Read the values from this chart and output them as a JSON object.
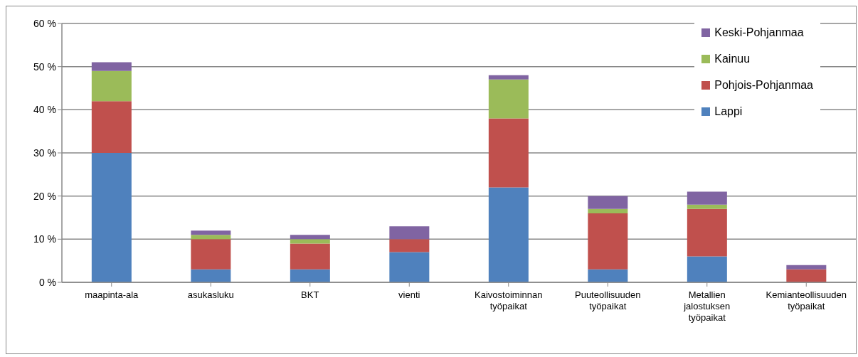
{
  "chart_data": {
    "type": "bar",
    "stacked": true,
    "categories": [
      "maapinta-ala",
      "asukasluku",
      "BKT",
      "vienti",
      "Kaivostoiminnan työpaikat",
      "Puuteollisuuden työpaikat",
      "Metallien jalostuksen työpaikat",
      "Kemianteollisuuden työpaikat"
    ],
    "series": [
      {
        "name": "Lappi",
        "color": "#4f81bd",
        "values": [
          30,
          3,
          3,
          7,
          22,
          3,
          6,
          0
        ]
      },
      {
        "name": "Pohjois-Pohjanmaa",
        "color": "#c0504d",
        "values": [
          12,
          7,
          6,
          3,
          16,
          13,
          11,
          3
        ]
      },
      {
        "name": "Kainuu",
        "color": "#9bbb59",
        "values": [
          7,
          1,
          1,
          0,
          9,
          1,
          1,
          0
        ]
      },
      {
        "name": "Keski-Pohjanmaa",
        "color": "#8064a2",
        "values": [
          2,
          1,
          1,
          3,
          1,
          3,
          3,
          1
        ]
      }
    ],
    "ylim": [
      0,
      60
    ],
    "yticks": [
      {
        "value": 0,
        "label": "0 %"
      },
      {
        "value": 10,
        "label": "10 %"
      },
      {
        "value": 20,
        "label": "20 %"
      },
      {
        "value": 30,
        "label": "30 %"
      },
      {
        "value": 40,
        "label": "40 %"
      },
      {
        "value": 50,
        "label": "50 %"
      },
      {
        "value": 60,
        "label": "60 %"
      }
    ],
    "grid": "y",
    "legend": "top right"
  }
}
